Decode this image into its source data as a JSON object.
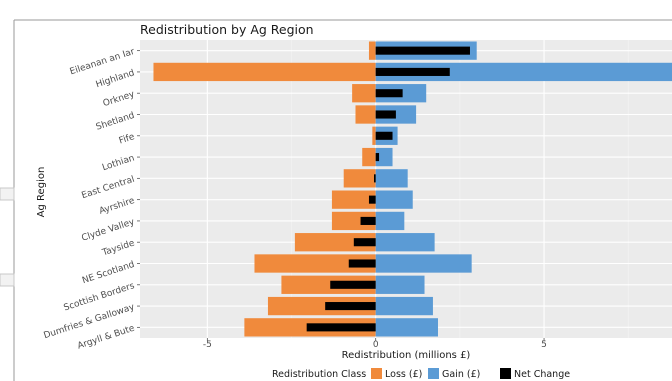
{
  "chart_data": {
    "type": "bar",
    "orientation": "horizontal",
    "title": "Redistribution by Ag Region",
    "xlabel": "Redistribution (millions £)",
    "ylabel": "Ag Region",
    "xlim": [
      -7.0,
      8.8
    ],
    "xticks": [
      -5,
      0,
      5
    ],
    "grid": true,
    "legend_position": "bottom",
    "legend_title": "Redistribution Class",
    "categories": [
      "Eileanan an Iar",
      "Highland",
      "Orkney",
      "Shetland",
      "Fife",
      "Lothian",
      "East Central",
      "Ayrshire",
      "Clyde Valley",
      "Tayside",
      "NE Scotland",
      "Scottish Borders",
      "Dumfries & Galloway",
      "Argyll & Bute"
    ],
    "series": [
      {
        "name": "Loss (£)",
        "color": "#f08a3c",
        "values": [
          -0.2,
          -6.6,
          -0.7,
          -0.6,
          -0.1,
          -0.4,
          -0.95,
          -1.3,
          -1.3,
          -2.4,
          -3.6,
          -2.8,
          -3.2,
          -3.9
        ]
      },
      {
        "name": "Gain (£)",
        "color": "#5b9bd5",
        "values": [
          3.0,
          8.8,
          1.5,
          1.2,
          0.65,
          0.5,
          0.95,
          1.1,
          0.85,
          1.75,
          2.85,
          1.45,
          1.7,
          1.85
        ]
      },
      {
        "name": "Net Change",
        "color": "#000000",
        "values": [
          2.8,
          2.2,
          0.8,
          0.6,
          0.5,
          0.1,
          -0.05,
          -0.2,
          -0.45,
          -0.65,
          -0.8,
          -1.35,
          -1.5,
          -2.05
        ]
      }
    ]
  }
}
